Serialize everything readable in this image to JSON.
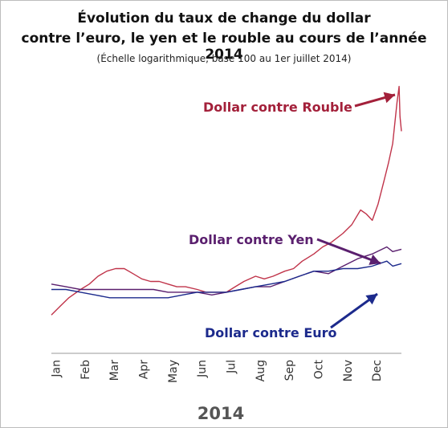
{
  "chart_data": {
    "type": "line",
    "title": "Évolution du taux de change du dollar",
    "title_line2": "contre l’euro, le yen et le rouble au cours de l’année 2014",
    "subtitle": "(Échelle logarithmique, base 100 au 1er juillet 2014)",
    "xlabel": "2014",
    "ylabel": "",
    "yscale": "log",
    "grid": false,
    "ylim": [
      80,
      220
    ],
    "months": [
      "Jan",
      "Feb",
      "Mar",
      "Apr",
      "May",
      "Jun",
      "Jul",
      "Aug",
      "Sep",
      "Oct",
      "Nov",
      "Dec"
    ],
    "series": [
      {
        "name": "Dollar contre Rouble",
        "color": "#c0344a",
        "label_color": "#a3203a",
        "points": [
          [
            0.0,
            92
          ],
          [
            0.3,
            95
          ],
          [
            0.6,
            98
          ],
          [
            1.0,
            101
          ],
          [
            1.3,
            103
          ],
          [
            1.6,
            106
          ],
          [
            1.9,
            108
          ],
          [
            2.2,
            109
          ],
          [
            2.5,
            109
          ],
          [
            2.8,
            107
          ],
          [
            3.1,
            105
          ],
          [
            3.4,
            104
          ],
          [
            3.7,
            104
          ],
          [
            4.0,
            103
          ],
          [
            4.3,
            102
          ],
          [
            4.6,
            102
          ],
          [
            5.0,
            101
          ],
          [
            5.3,
            100
          ],
          [
            5.6,
            100
          ],
          [
            6.0,
            100
          ],
          [
            6.3,
            102
          ],
          [
            6.6,
            104
          ],
          [
            7.0,
            106
          ],
          [
            7.3,
            105
          ],
          [
            7.6,
            106
          ],
          [
            8.0,
            108
          ],
          [
            8.3,
            109
          ],
          [
            8.6,
            112
          ],
          [
            9.0,
            115
          ],
          [
            9.3,
            118
          ],
          [
            9.6,
            120
          ],
          [
            10.0,
            124
          ],
          [
            10.3,
            128
          ],
          [
            10.6,
            135
          ],
          [
            10.8,
            133
          ],
          [
            11.0,
            130
          ],
          [
            11.2,
            138
          ],
          [
            11.4,
            150
          ],
          [
            11.55,
            160
          ],
          [
            11.7,
            172
          ],
          [
            11.85,
            200
          ],
          [
            11.92,
            212
          ],
          [
            11.95,
            190
          ],
          [
            12.0,
            180
          ]
        ]
      },
      {
        "name": "Dollar contre Yen",
        "color": "#5a1f6e",
        "label_color": "#5a1f6e",
        "points": [
          [
            0.0,
            103
          ],
          [
            0.5,
            102
          ],
          [
            1.0,
            101
          ],
          [
            1.5,
            101
          ],
          [
            2.0,
            101
          ],
          [
            2.5,
            101
          ],
          [
            3.0,
            101
          ],
          [
            3.5,
            101
          ],
          [
            4.0,
            100
          ],
          [
            4.5,
            100
          ],
          [
            5.0,
            100
          ],
          [
            5.5,
            99
          ],
          [
            6.0,
            100
          ],
          [
            6.5,
            101
          ],
          [
            7.0,
            102
          ],
          [
            7.5,
            102
          ],
          [
            8.0,
            104
          ],
          [
            8.5,
            106
          ],
          [
            9.0,
            108
          ],
          [
            9.5,
            107
          ],
          [
            10.0,
            110
          ],
          [
            10.5,
            113
          ],
          [
            11.0,
            115
          ],
          [
            11.5,
            118
          ],
          [
            11.7,
            116
          ],
          [
            12.0,
            117
          ]
        ]
      },
      {
        "name": "Dollar contre Euro",
        "color": "#1c2a8c",
        "label_color": "#1c2a8c",
        "points": [
          [
            0.0,
            101
          ],
          [
            0.5,
            101
          ],
          [
            1.0,
            100
          ],
          [
            1.5,
            99
          ],
          [
            2.0,
            98
          ],
          [
            2.5,
            98
          ],
          [
            3.0,
            98
          ],
          [
            3.5,
            98
          ],
          [
            4.0,
            98
          ],
          [
            4.5,
            99
          ],
          [
            5.0,
            100
          ],
          [
            5.5,
            100
          ],
          [
            6.0,
            100
          ],
          [
            6.5,
            101
          ],
          [
            7.0,
            102
          ],
          [
            7.5,
            103
          ],
          [
            8.0,
            104
          ],
          [
            8.5,
            106
          ],
          [
            9.0,
            108
          ],
          [
            9.5,
            108
          ],
          [
            10.0,
            109
          ],
          [
            10.5,
            109
          ],
          [
            11.0,
            110
          ],
          [
            11.5,
            112
          ],
          [
            11.7,
            110
          ],
          [
            12.0,
            111
          ]
        ]
      }
    ]
  }
}
